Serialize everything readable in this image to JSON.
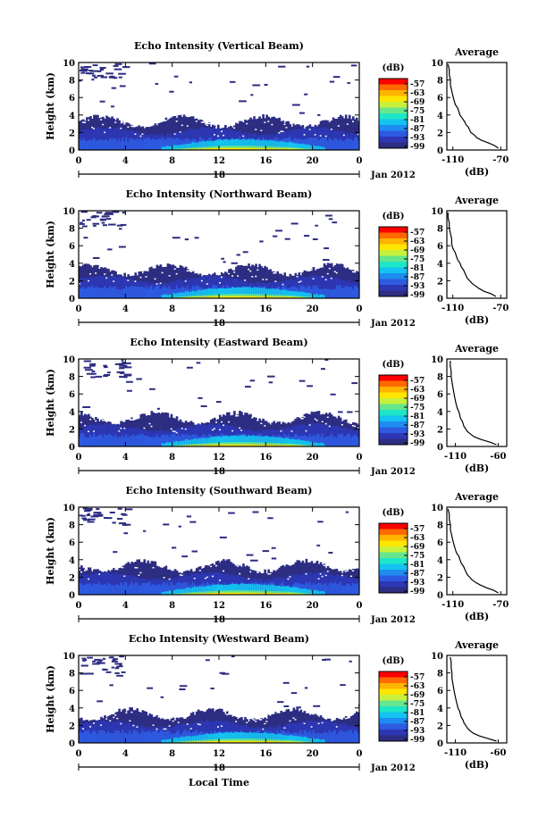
{
  "figure": {
    "bottom_xlabel": "Local Time",
    "date_label": "Jan 2012",
    "day_label": "18",
    "avg_title": "Average",
    "cb_unit": "(dB)",
    "avg_xlabel": "(dB)"
  },
  "colorbar": {
    "ticks": [
      "-57",
      "-63",
      "-69",
      "-75",
      "-81",
      "-87",
      "-93",
      "-99"
    ],
    "colors": [
      "#ff0000",
      "#ff6a00",
      "#ffb400",
      "#ffe600",
      "#c8f03c",
      "#66e68c",
      "#1ee6c8",
      "#14c3f0",
      "#1e8cf0",
      "#2d5ae1",
      "#2d37b4",
      "#2d2d82"
    ]
  },
  "chart_data": [
    {
      "type": "heatmap",
      "title": "Echo Intensity (Vertical Beam)",
      "ylabel": "Height (km)",
      "xticks": [
        "0",
        "4",
        "8",
        "12",
        "16",
        "20",
        "0"
      ],
      "yticks": [
        "0",
        "2",
        "4",
        "6",
        "8",
        "10"
      ],
      "xlim": [
        0,
        24
      ],
      "ylim": [
        0,
        10
      ],
      "avg_profile": {
        "xlim": [
          -115,
          -65
        ],
        "ylim": [
          0,
          10
        ],
        "xticks": [
          "-110",
          "-70"
        ],
        "yticks": [
          "0",
          "2",
          "4",
          "6",
          "8",
          "10"
        ],
        "points": [
          [
            -72,
            0.2
          ],
          [
            -75,
            0.5
          ],
          [
            -80,
            0.8
          ],
          [
            -86,
            1.1
          ],
          [
            -90,
            1.4
          ],
          [
            -92,
            1.7
          ],
          [
            -95,
            2.0
          ],
          [
            -96,
            2.3
          ],
          [
            -97,
            2.6
          ],
          [
            -99,
            2.9
          ],
          [
            -100,
            3.2
          ],
          [
            -102,
            3.6
          ],
          [
            -104,
            4.0
          ],
          [
            -105,
            4.4
          ],
          [
            -106,
            4.8
          ],
          [
            -108,
            5.2
          ],
          [
            -109,
            5.7
          ],
          [
            -110,
            6.2
          ],
          [
            -111,
            6.8
          ],
          [
            -112,
            7.4
          ],
          [
            -112,
            8.0
          ],
          [
            -113,
            8.6
          ],
          [
            -113,
            9.2
          ],
          [
            -114,
            9.8
          ]
        ]
      }
    },
    {
      "type": "heatmap",
      "title": "Echo Intensity (Northward Beam)",
      "ylabel": "Height (km)",
      "xticks": [
        "0",
        "4",
        "8",
        "12",
        "16",
        "20",
        "0"
      ],
      "yticks": [
        "0",
        "2",
        "4",
        "6",
        "8",
        "10"
      ],
      "xlim": [
        0,
        24
      ],
      "ylim": [
        0,
        10
      ],
      "avg_profile": {
        "xlim": [
          -115,
          -65
        ],
        "ylim": [
          0,
          10
        ],
        "xticks": [
          "-110",
          "-70"
        ],
        "yticks": [
          "0",
          "2",
          "4",
          "6",
          "8",
          "10"
        ],
        "points": [
          [
            -74,
            0.2
          ],
          [
            -78,
            0.5
          ],
          [
            -84,
            0.8
          ],
          [
            -88,
            1.1
          ],
          [
            -91,
            1.4
          ],
          [
            -94,
            1.7
          ],
          [
            -96,
            2.0
          ],
          [
            -98,
            2.3
          ],
          [
            -99,
            2.6
          ],
          [
            -100,
            2.9
          ],
          [
            -101,
            3.2
          ],
          [
            -103,
            3.6
          ],
          [
            -104,
            4.0
          ],
          [
            -106,
            4.4
          ],
          [
            -107,
            4.8
          ],
          [
            -108,
            5.2
          ],
          [
            -110,
            5.7
          ],
          [
            -111,
            6.2
          ],
          [
            -111,
            6.8
          ],
          [
            -112,
            7.4
          ],
          [
            -113,
            8.0
          ],
          [
            -113,
            8.6
          ],
          [
            -114,
            9.2
          ],
          [
            -114,
            9.8
          ]
        ]
      }
    },
    {
      "type": "heatmap",
      "title": "Echo Intensity (Eastward Beam)",
      "ylabel": "Height (km)",
      "xticks": [
        "0",
        "4",
        "8",
        "12",
        "16",
        "20",
        "0"
      ],
      "yticks": [
        "0",
        "2",
        "4",
        "6",
        "8",
        "10"
      ],
      "xlim": [
        0,
        24
      ],
      "ylim": [
        0,
        10
      ],
      "avg_profile": {
        "xlim": [
          -120,
          -50
        ],
        "ylim": [
          0,
          10
        ],
        "xticks": [
          "-110",
          "-60"
        ],
        "yticks": [
          "0",
          "2",
          "4",
          "6",
          "8",
          "10"
        ],
        "points": [
          [
            -62,
            0.2
          ],
          [
            -70,
            0.5
          ],
          [
            -80,
            0.8
          ],
          [
            -88,
            1.1
          ],
          [
            -92,
            1.4
          ],
          [
            -96,
            1.7
          ],
          [
            -98,
            2.0
          ],
          [
            -100,
            2.3
          ],
          [
            -101,
            2.6
          ],
          [
            -102,
            2.9
          ],
          [
            -104,
            3.2
          ],
          [
            -105,
            3.6
          ],
          [
            -106,
            4.0
          ],
          [
            -108,
            4.4
          ],
          [
            -109,
            4.8
          ],
          [
            -110,
            5.2
          ],
          [
            -111,
            5.7
          ],
          [
            -112,
            6.2
          ],
          [
            -113,
            6.8
          ],
          [
            -114,
            7.4
          ],
          [
            -115,
            8.0
          ],
          [
            -115,
            8.6
          ],
          [
            -116,
            9.2
          ],
          [
            -116,
            9.8
          ]
        ]
      }
    },
    {
      "type": "heatmap",
      "title": "Echo Intensity (Southward Beam)",
      "ylabel": "Height (km)",
      "xticks": [
        "0",
        "4",
        "8",
        "12",
        "16",
        "20",
        "0"
      ],
      "yticks": [
        "0",
        "2",
        "4",
        "6",
        "8",
        "10"
      ],
      "xlim": [
        0,
        24
      ],
      "ylim": [
        0,
        10
      ],
      "avg_profile": {
        "xlim": [
          -115,
          -65
        ],
        "ylim": [
          0,
          10
        ],
        "xticks": [
          "-110",
          "-70"
        ],
        "yticks": [
          "0",
          "2",
          "4",
          "6",
          "8",
          "10"
        ],
        "points": [
          [
            -72,
            0.2
          ],
          [
            -76,
            0.5
          ],
          [
            -82,
            0.8
          ],
          [
            -87,
            1.1
          ],
          [
            -91,
            1.4
          ],
          [
            -94,
            1.7
          ],
          [
            -96,
            2.0
          ],
          [
            -98,
            2.3
          ],
          [
            -99,
            2.6
          ],
          [
            -100,
            2.9
          ],
          [
            -101,
            3.2
          ],
          [
            -103,
            3.6
          ],
          [
            -104,
            4.0
          ],
          [
            -105,
            4.4
          ],
          [
            -107,
            4.8
          ],
          [
            -108,
            5.2
          ],
          [
            -109,
            5.7
          ],
          [
            -110,
            6.2
          ],
          [
            -111,
            6.8
          ],
          [
            -112,
            7.4
          ],
          [
            -112,
            8.0
          ],
          [
            -113,
            8.6
          ],
          [
            -113,
            9.2
          ],
          [
            -114,
            9.8
          ]
        ]
      }
    },
    {
      "type": "heatmap",
      "title": "Echo Intensity (Westward Beam)",
      "ylabel": "Height (km)",
      "xticks": [
        "0",
        "4",
        "8",
        "12",
        "16",
        "20",
        "0"
      ],
      "yticks": [
        "0",
        "2",
        "4",
        "6",
        "8",
        "10"
      ],
      "xlim": [
        0,
        24
      ],
      "ylim": [
        0,
        10
      ],
      "avg_profile": {
        "xlim": [
          -120,
          -50
        ],
        "ylim": [
          0,
          10
        ],
        "xticks": [
          "-110",
          "-60"
        ],
        "yticks": [
          "0",
          "2",
          "4",
          "6",
          "8",
          "10"
        ],
        "points": [
          [
            -62,
            0.2
          ],
          [
            -72,
            0.5
          ],
          [
            -82,
            0.8
          ],
          [
            -89,
            1.1
          ],
          [
            -93,
            1.4
          ],
          [
            -96,
            1.7
          ],
          [
            -98,
            2.0
          ],
          [
            -100,
            2.3
          ],
          [
            -101,
            2.6
          ],
          [
            -103,
            2.9
          ],
          [
            -104,
            3.2
          ],
          [
            -105,
            3.6
          ],
          [
            -107,
            4.0
          ],
          [
            -108,
            4.4
          ],
          [
            -109,
            4.8
          ],
          [
            -110,
            5.2
          ],
          [
            -111,
            5.7
          ],
          [
            -112,
            6.2
          ],
          [
            -113,
            6.8
          ],
          [
            -114,
            7.4
          ],
          [
            -114,
            8.0
          ],
          [
            -115,
            8.6
          ],
          [
            -115,
            9.2
          ],
          [
            -116,
            9.8
          ]
        ]
      }
    }
  ]
}
